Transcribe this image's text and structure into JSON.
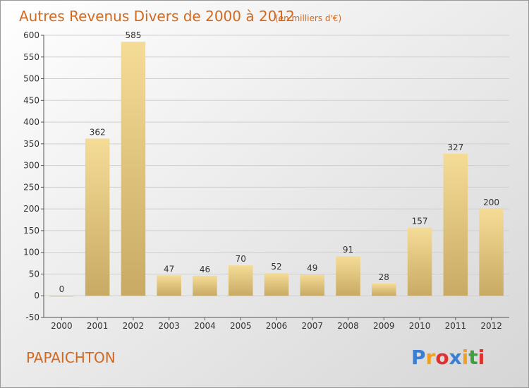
{
  "chart_data": {
    "type": "bar",
    "title": "Autres Revenus Divers de 2000 à 2012",
    "subtitle": "(en milliers d'€)",
    "categories": [
      "2000",
      "2001",
      "2002",
      "2003",
      "2004",
      "2005",
      "2006",
      "2007",
      "2008",
      "2009",
      "2010",
      "2011",
      "2012"
    ],
    "values": [
      0,
      362,
      585,
      47,
      46,
      70,
      52,
      49,
      91,
      28,
      157,
      327,
      200
    ],
    "ylim": [
      -50,
      600
    ],
    "yticks": [
      -50,
      0,
      50,
      100,
      150,
      200,
      250,
      300,
      350,
      400,
      450,
      500,
      550,
      600
    ],
    "grid": "horizontal",
    "xlabel": "",
    "ylabel": ""
  },
  "commune": "PAPAICHTON",
  "brand": {
    "letters": [
      "P",
      "r",
      "o",
      "x",
      "i",
      "t",
      "i"
    ],
    "colors": [
      "#3a7fd5",
      "#f0a020",
      "#e03030",
      "#3a7fd5",
      "#f0a020",
      "#40a040",
      "#e03030"
    ]
  },
  "colors": {
    "title": "#d2691e",
    "bar_light": "#f5dc96",
    "bar_dark": "#c8aa64",
    "background_top": "#ffffff",
    "background_bottom": "#d8d8d8"
  }
}
